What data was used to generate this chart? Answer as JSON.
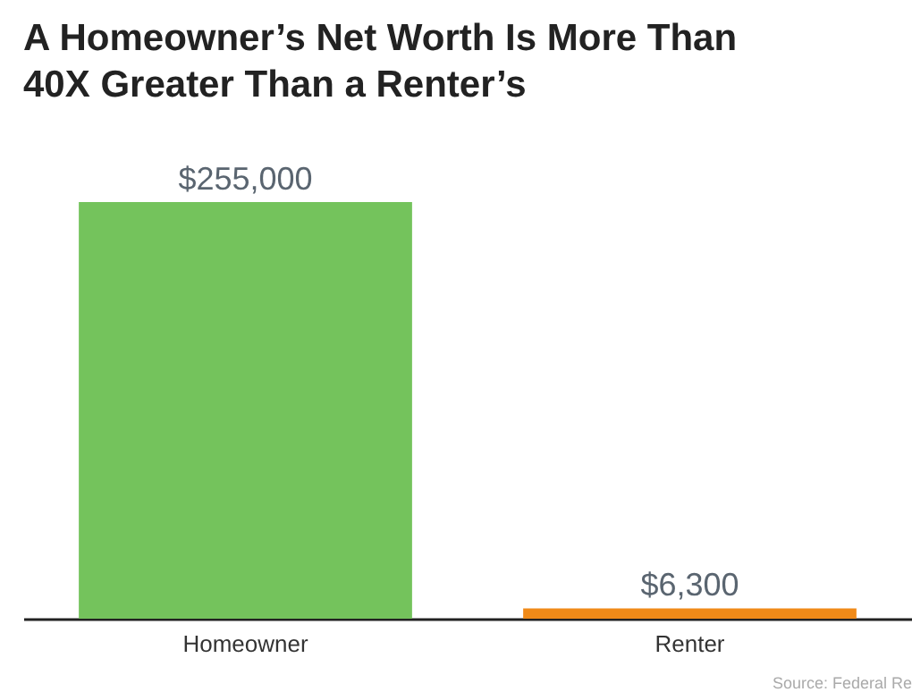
{
  "chart_data": {
    "type": "bar",
    "title": "A Homeowner’s Net Worth Is More Than 40X Greater Than a Renter’s",
    "categories": [
      "Homeowner",
      "Renter"
    ],
    "values": [
      255000,
      6300
    ],
    "colors": [
      "#74c35c",
      "#f08a18"
    ],
    "value_labels": [
      "$255,000",
      "$6,300"
    ],
    "annotations": [
      "Source: Federal Re"
    ]
  }
}
